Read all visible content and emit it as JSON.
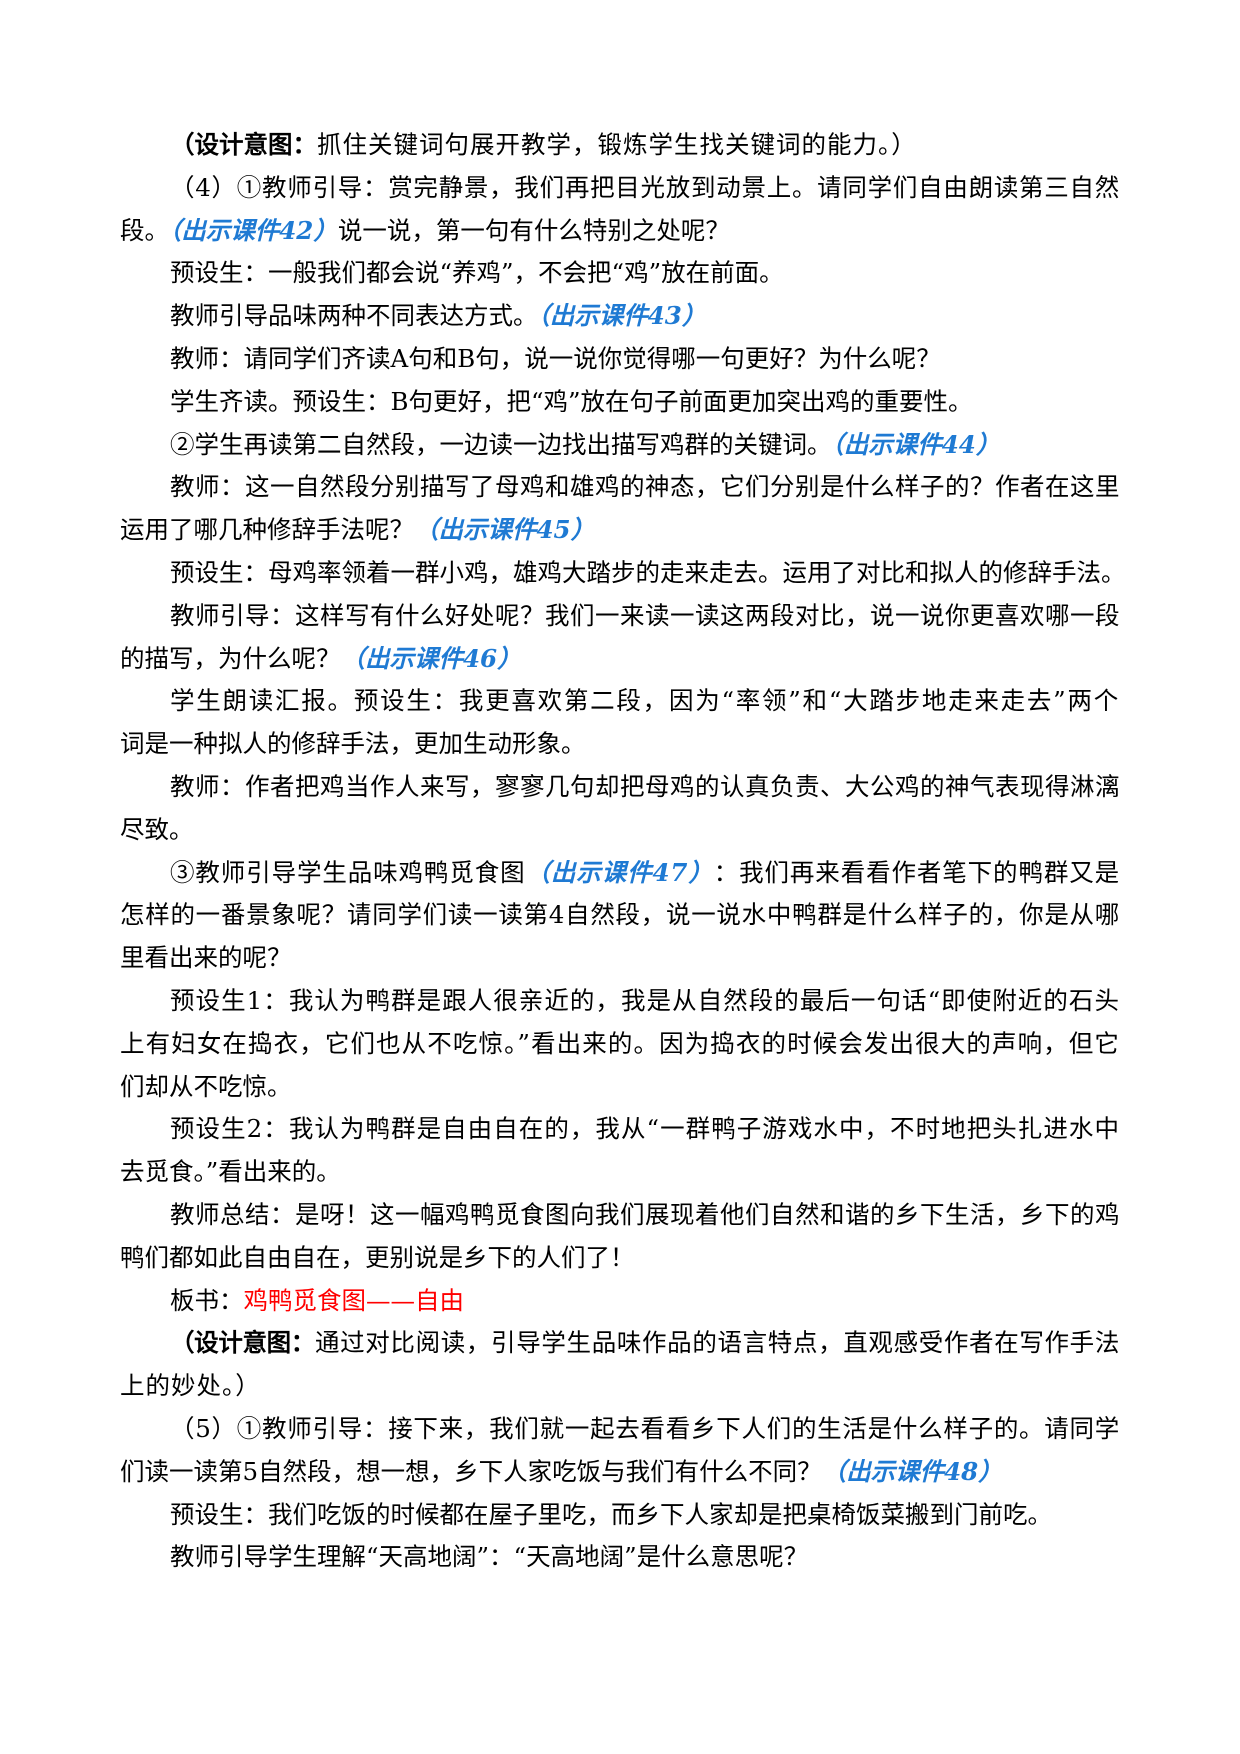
{
  "colors": {
    "link": "#1f7ad3",
    "red": "#ff0000",
    "text": "#000000"
  },
  "lines": [
    {
      "i": 1,
      "f": 0,
      "s": [
        [
          "label",
          "（设计意图："
        ],
        [
          "note",
          "抓住关键词句展开教学，锻炼学生找关键词的能力。）"
        ]
      ]
    },
    {
      "i": 1,
      "f": 1,
      "s": [
        [
          "t",
          "（4）①教师引导：赏完静景，我们再把目光放到动景上。请同学们自由朗读第三自然"
        ]
      ]
    },
    {
      "i": 0,
      "f": 0,
      "s": [
        [
          "t",
          "段。"
        ],
        [
          "link",
          "（出示课件42）"
        ],
        [
          "t",
          "说一说，第一句有什么特别之处呢？"
        ]
      ]
    },
    {
      "i": 1,
      "f": 0,
      "s": [
        [
          "t",
          "预设生：一般我们都会说“养鸡”，不会把“鸡”放在前面。"
        ]
      ]
    },
    {
      "i": 1,
      "f": 0,
      "s": [
        [
          "t",
          "教师引导品味两种不同表达方式。"
        ],
        [
          "link",
          "（出示课件43）"
        ]
      ]
    },
    {
      "i": 1,
      "f": 0,
      "s": [
        [
          "t",
          "教师：请同学们齐读A句和B句，说一说你觉得哪一句更好？为什么呢？"
        ]
      ]
    },
    {
      "i": 1,
      "f": 0,
      "s": [
        [
          "t",
          "学生齐读。预设生：B句更好，把“鸡”放在句子前面更加突出鸡的重要性。"
        ]
      ]
    },
    {
      "i": 1,
      "f": 0,
      "s": [
        [
          "t",
          "②学生再读第二自然段，一边读一边找出描写鸡群的关键词。"
        ],
        [
          "link",
          "（出示课件44）"
        ]
      ]
    },
    {
      "i": 1,
      "f": 1,
      "s": [
        [
          "t",
          "教师：这一自然段分别描写了母鸡和雄鸡的神态，它们分别是什么样子的？作者在这里"
        ]
      ]
    },
    {
      "i": 0,
      "f": 0,
      "s": [
        [
          "t",
          "运用了哪几种修辞手法呢？"
        ],
        [
          "link",
          "（出示课件45）"
        ]
      ]
    },
    {
      "i": 1,
      "f": 2,
      "s": [
        [
          "t",
          "预设生：母鸡率领着一群小鸡，雄鸡大踏步的走来走去。运用了对比和拟人的修辞手法。"
        ]
      ]
    },
    {
      "i": 1,
      "f": 1,
      "s": [
        [
          "t",
          "教师引导：这样写有什么好处呢？我们一来读一读这两段对比，说一说你更喜欢哪一段"
        ]
      ]
    },
    {
      "i": 0,
      "f": 0,
      "s": [
        [
          "t",
          "的描写，为什么呢？"
        ],
        [
          "link",
          "（出示课件46）"
        ]
      ]
    },
    {
      "i": 1,
      "f": 1,
      "s": [
        [
          "t",
          "学生朗读汇报。预设生：我更喜欢第二段，因为“率领”和“大踏步地走来走去”两个"
        ]
      ]
    },
    {
      "i": 0,
      "f": 0,
      "s": [
        [
          "t",
          "词是一种拟人的修辞手法，更加生动形象。"
        ]
      ]
    },
    {
      "i": 1,
      "f": 1,
      "s": [
        [
          "t",
          "教师：作者把鸡当作人来写，寥寥几句却把母鸡的认真负责、大公鸡的神气表现得淋漓"
        ]
      ]
    },
    {
      "i": 0,
      "f": 0,
      "s": [
        [
          "t",
          "尽致。"
        ]
      ]
    },
    {
      "i": 1,
      "f": 1,
      "s": [
        [
          "t",
          "③教师引导学生品味鸡鸭觅食图"
        ],
        [
          "link",
          "（出示课件47）"
        ],
        [
          "t",
          "：我们再来看看作者笔下的鸭群又是"
        ]
      ]
    },
    {
      "i": 0,
      "f": 1,
      "s": [
        [
          "t",
          "怎样的一番景象呢？请同学们读一读第4自然段，说一说水中鸭群是什么样子的，你是从哪"
        ]
      ]
    },
    {
      "i": 0,
      "f": 0,
      "s": [
        [
          "t",
          "里看出来的呢？"
        ]
      ]
    },
    {
      "i": 1,
      "f": 1,
      "s": [
        [
          "t",
          "预设生1：我认为鸭群是跟人很亲近的，我是从自然段的最后一句话“即使附近的石头"
        ]
      ]
    },
    {
      "i": 0,
      "f": 1,
      "s": [
        [
          "t",
          "上有妇女在捣衣，它们也从不吃惊。”看出来的。因为捣衣的时候会发出很大的声响，但它"
        ]
      ]
    },
    {
      "i": 0,
      "f": 0,
      "s": [
        [
          "t",
          "们却从不吃惊。"
        ]
      ]
    },
    {
      "i": 1,
      "f": 1,
      "s": [
        [
          "t",
          "预设生2：我认为鸭群是自由自在的，我从“一群鸭子游戏水中，不时地把头扎进水中"
        ]
      ]
    },
    {
      "i": 0,
      "f": 0,
      "s": [
        [
          "t",
          "去觅食。”看出来的。"
        ]
      ]
    },
    {
      "i": 1,
      "f": 1,
      "s": [
        [
          "t",
          "教师总结：是呀！这一幅鸡鸭觅食图向我们展现着他们自然和谐的乡下生活，乡下的鸡"
        ]
      ]
    },
    {
      "i": 0,
      "f": 0,
      "s": [
        [
          "t",
          "鸭们都如此自由自在，更别说是乡下的人们了！"
        ]
      ]
    },
    {
      "i": 1,
      "f": 0,
      "s": [
        [
          "t",
          "板书："
        ],
        [
          "red",
          "鸡鸭觅食图——自由"
        ]
      ]
    },
    {
      "i": 1,
      "f": 1,
      "s": [
        [
          "label",
          "（设计意图："
        ],
        [
          "note",
          "通过对比阅读，引导学生品味作品的语言特点，直观感受作者在写作手法"
        ]
      ]
    },
    {
      "i": 0,
      "f": 0,
      "s": [
        [
          "note",
          "上的妙处。）"
        ]
      ]
    },
    {
      "i": 1,
      "f": 1,
      "s": [
        [
          "t",
          "（5）①教师引导：接下来，我们就一起去看看乡下人们的生活是什么样子的。请同学"
        ]
      ]
    },
    {
      "i": 0,
      "f": 0,
      "s": [
        [
          "t",
          "们读一读第5自然段，想一想，乡下人家吃饭与我们有什么不同？"
        ],
        [
          "link",
          "（出示课件48）"
        ]
      ]
    },
    {
      "i": 1,
      "f": 0,
      "s": [
        [
          "t",
          "预设生：我们吃饭的时候都在屋子里吃，而乡下人家却是把桌椅饭菜搬到门前吃。"
        ]
      ]
    },
    {
      "i": 1,
      "f": 0,
      "s": [
        [
          "t",
          "教师引导学生理解“天高地阔”：“天高地阔”是什么意思呢？"
        ]
      ]
    }
  ]
}
